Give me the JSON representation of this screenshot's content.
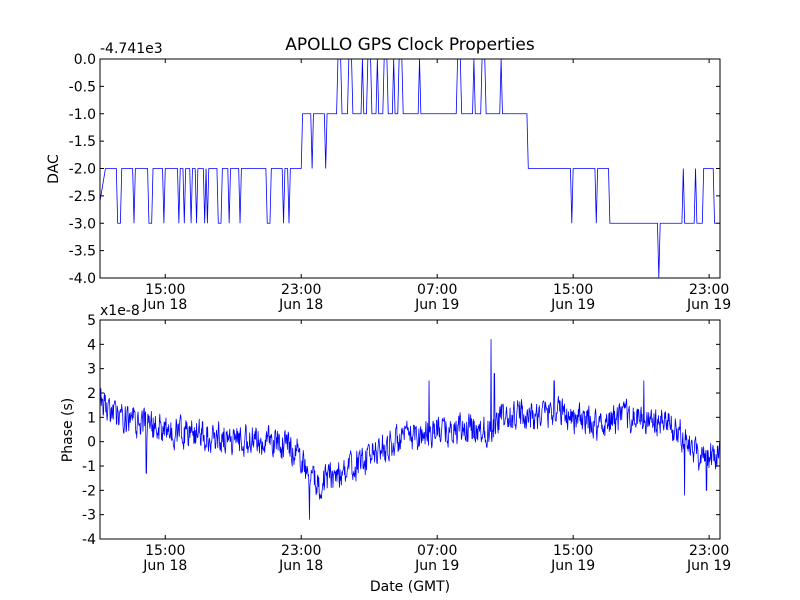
{
  "figure": {
    "title": "APOLLO GPS Clock Properties"
  },
  "chart_data": [
    {
      "type": "line",
      "name": "dac",
      "title": "APOLLO GPS Clock Properties",
      "xlabel": "",
      "ylabel": "DAC",
      "offset_text": "-4.741e3",
      "x_unit": "hours since Jun 18 00:00 GMT",
      "xlim": [
        10.6,
        33.4
      ],
      "ylim": [
        -4.0,
        0.0
      ],
      "yticks": [
        0.0,
        -0.5,
        -1.0,
        -1.5,
        -2.0,
        -2.5,
        -3.0,
        -3.5,
        -4.0
      ],
      "ytick_labels": [
        "0.0",
        "-0.5",
        "-1.0",
        "-1.5",
        "-2.0",
        "-2.5",
        "-3.0",
        "-3.5",
        "-4.0"
      ],
      "xticks": [
        {
          "x": 13,
          "time": "15:00",
          "date": "Jun 18"
        },
        {
          "x": 18,
          "time": "23:00",
          "date": "Jun 18"
        },
        {
          "x": 23,
          "time": "07:00",
          "date": "Jun 19"
        },
        {
          "x": 28,
          "time": "15:00",
          "date": "Jun 19"
        },
        {
          "x": 33,
          "time": "23:00",
          "date": "Jun 19"
        }
      ],
      "series": [
        {
          "name": "DAC",
          "color": "#0000ff",
          "points": [
            [
              10.6,
              -2.6
            ],
            [
              10.8,
              -2.0
            ],
            [
              11.2,
              -2.0
            ],
            [
              11.25,
              -3.0
            ],
            [
              11.35,
              -3.0
            ],
            [
              11.4,
              -2.0
            ],
            [
              11.8,
              -2.0
            ],
            [
              11.85,
              -3.0
            ],
            [
              11.9,
              -2.0
            ],
            [
              12.35,
              -2.0
            ],
            [
              12.4,
              -3.0
            ],
            [
              12.5,
              -3.0
            ],
            [
              12.55,
              -2.0
            ],
            [
              12.9,
              -2.0
            ],
            [
              12.95,
              -3.0
            ],
            [
              13.0,
              -2.0
            ],
            [
              13.45,
              -2.0
            ],
            [
              13.5,
              -3.0
            ],
            [
              13.55,
              -2.0
            ],
            [
              13.65,
              -2.0
            ],
            [
              13.7,
              -3.0
            ],
            [
              13.75,
              -2.0
            ],
            [
              13.9,
              -2.0
            ],
            [
              13.95,
              -3.0
            ],
            [
              14.0,
              -2.0
            ],
            [
              14.1,
              -2.0
            ],
            [
              14.15,
              -3.0
            ],
            [
              14.2,
              -2.0
            ],
            [
              14.4,
              -2.0
            ],
            [
              14.45,
              -3.0
            ],
            [
              14.5,
              -2.0
            ],
            [
              14.55,
              -3.0
            ],
            [
              14.6,
              -2.0
            ],
            [
              14.9,
              -2.0
            ],
            [
              14.95,
              -3.0
            ],
            [
              15.05,
              -3.0
            ],
            [
              15.1,
              -2.0
            ],
            [
              15.3,
              -2.0
            ],
            [
              15.35,
              -3.0
            ],
            [
              15.4,
              -2.0
            ],
            [
              15.7,
              -2.0
            ],
            [
              15.75,
              -3.0
            ],
            [
              15.8,
              -2.0
            ],
            [
              16.7,
              -2.0
            ],
            [
              16.75,
              -3.0
            ],
            [
              16.85,
              -3.0
            ],
            [
              16.9,
              -2.0
            ],
            [
              17.3,
              -2.0
            ],
            [
              17.35,
              -3.0
            ],
            [
              17.4,
              -2.0
            ],
            [
              17.5,
              -2.0
            ],
            [
              17.55,
              -3.0
            ],
            [
              17.6,
              -2.0
            ],
            [
              18.0,
              -2.0
            ],
            [
              18.05,
              -1.0
            ],
            [
              18.35,
              -1.0
            ],
            [
              18.4,
              -2.0
            ],
            [
              18.45,
              -1.0
            ],
            [
              18.85,
              -1.0
            ],
            [
              18.9,
              -2.0
            ],
            [
              18.95,
              -1.0
            ],
            [
              19.3,
              -1.0
            ],
            [
              19.35,
              0.0
            ],
            [
              19.45,
              0.0
            ],
            [
              19.5,
              -1.0
            ],
            [
              19.7,
              -1.0
            ],
            [
              19.75,
              0.0
            ],
            [
              19.85,
              0.0
            ],
            [
              19.9,
              -1.0
            ],
            [
              20.2,
              -1.0
            ],
            [
              20.25,
              0.0
            ],
            [
              20.3,
              -1.0
            ],
            [
              20.4,
              -1.0
            ],
            [
              20.45,
              0.0
            ],
            [
              20.55,
              0.0
            ],
            [
              20.6,
              -1.0
            ],
            [
              20.75,
              -1.0
            ],
            [
              20.8,
              0.0
            ],
            [
              20.85,
              -1.0
            ],
            [
              21.0,
              -1.0
            ],
            [
              21.05,
              0.0
            ],
            [
              21.15,
              0.0
            ],
            [
              21.2,
              -1.0
            ],
            [
              21.35,
              -1.0
            ],
            [
              21.4,
              0.0
            ],
            [
              21.45,
              -1.0
            ],
            [
              21.55,
              -1.0
            ],
            [
              21.6,
              0.0
            ],
            [
              21.7,
              0.0
            ],
            [
              21.75,
              -1.0
            ],
            [
              22.3,
              -1.0
            ],
            [
              22.35,
              0.0
            ],
            [
              22.4,
              -1.0
            ],
            [
              23.7,
              -1.0
            ],
            [
              23.75,
              0.0
            ],
            [
              23.85,
              0.0
            ],
            [
              23.9,
              -1.0
            ],
            [
              24.3,
              -1.0
            ],
            [
              24.35,
              0.0
            ],
            [
              24.4,
              -1.0
            ],
            [
              24.6,
              -1.0
            ],
            [
              24.65,
              0.0
            ],
            [
              24.75,
              0.0
            ],
            [
              24.8,
              -1.0
            ],
            [
              25.3,
              -1.0
            ],
            [
              25.35,
              0.0
            ],
            [
              25.4,
              -1.0
            ],
            [
              26.3,
              -1.0
            ],
            [
              26.35,
              -2.0
            ],
            [
              27.9,
              -2.0
            ],
            [
              27.95,
              -3.0
            ],
            [
              28.0,
              -2.0
            ],
            [
              28.8,
              -2.0
            ],
            [
              28.85,
              -3.0
            ],
            [
              28.9,
              -2.0
            ],
            [
              29.3,
              -2.0
            ],
            [
              29.35,
              -3.0
            ],
            [
              31.1,
              -3.0
            ],
            [
              31.15,
              -4.0
            ],
            [
              31.2,
              -3.0
            ],
            [
              32.0,
              -3.0
            ],
            [
              32.05,
              -2.0
            ],
            [
              32.1,
              -3.0
            ],
            [
              32.45,
              -3.0
            ],
            [
              32.5,
              -2.0
            ],
            [
              32.55,
              -3.0
            ],
            [
              32.75,
              -3.0
            ],
            [
              32.8,
              -2.0
            ],
            [
              33.15,
              -2.0
            ],
            [
              33.2,
              -3.0
            ],
            [
              33.4,
              -3.0
            ]
          ]
        }
      ]
    },
    {
      "type": "line",
      "name": "phase",
      "title": "",
      "xlabel": "Date (GMT)",
      "ylabel": "Phase (s)",
      "offset_text": "x1e-8",
      "x_unit": "hours since Jun 18 00:00 GMT",
      "xlim": [
        10.6,
        33.4
      ],
      "ylim": [
        -4,
        5
      ],
      "yticks": [
        5,
        4,
        3,
        2,
        1,
        0,
        -1,
        -2,
        -3,
        -4
      ],
      "ytick_labels": [
        "5",
        "4",
        "3",
        "2",
        "1",
        "0",
        "-1",
        "-2",
        "-3",
        "-4"
      ],
      "xticks": [
        {
          "x": 13,
          "time": "15:00",
          "date": "Jun 18"
        },
        {
          "x": 18,
          "time": "23:00",
          "date": "Jun 18"
        },
        {
          "x": 23,
          "time": "07:00",
          "date": "Jun 19"
        },
        {
          "x": 28,
          "time": "15:00",
          "date": "Jun 19"
        },
        {
          "x": 33,
          "time": "23:00",
          "date": "Jun 19"
        }
      ],
      "noise_amplitude": 0.55,
      "series": [
        {
          "name": "Phase",
          "color": "#0000ff",
          "trend": [
            [
              10.6,
              1.6
            ],
            [
              11.0,
              1.2
            ],
            [
              11.5,
              1.0
            ],
            [
              12.5,
              0.6
            ],
            [
              13.5,
              0.4
            ],
            [
              14.5,
              0.3
            ],
            [
              15.5,
              0.1
            ],
            [
              16.5,
              0.0
            ],
            [
              17.5,
              -0.1
            ],
            [
              18.0,
              -0.6
            ],
            [
              18.3,
              -1.6
            ],
            [
              18.6,
              -1.7
            ],
            [
              19.0,
              -1.5
            ],
            [
              19.6,
              -1.2
            ],
            [
              20.0,
              -1.0
            ],
            [
              20.5,
              -0.6
            ],
            [
              21.0,
              -0.3
            ],
            [
              21.5,
              0.0
            ],
            [
              22.0,
              0.2
            ],
            [
              22.5,
              0.3
            ],
            [
              23.0,
              0.5
            ],
            [
              23.5,
              0.4
            ],
            [
              24.0,
              0.5
            ],
            [
              24.5,
              0.5
            ],
            [
              25.0,
              0.5
            ],
            [
              25.3,
              1.0
            ],
            [
              25.7,
              0.9
            ],
            [
              26.0,
              1.2
            ],
            [
              26.5,
              1.0
            ],
            [
              27.0,
              1.2
            ],
            [
              27.5,
              1.3
            ],
            [
              28.0,
              1.0
            ],
            [
              28.5,
              0.8
            ],
            [
              29.0,
              0.7
            ],
            [
              29.5,
              0.9
            ],
            [
              30.0,
              1.0
            ],
            [
              30.5,
              0.9
            ],
            [
              31.0,
              0.7
            ],
            [
              31.5,
              0.8
            ],
            [
              32.0,
              0.2
            ],
            [
              32.3,
              -0.3
            ],
            [
              32.8,
              -0.6
            ],
            [
              33.4,
              -0.4
            ]
          ],
          "spikes": [
            [
              22.7,
              2.5
            ],
            [
              24.98,
              4.2
            ],
            [
              25.1,
              2.8
            ],
            [
              27.3,
              2.5
            ],
            [
              30.6,
              2.5
            ],
            [
              18.3,
              -3.2
            ],
            [
              12.3,
              -1.3
            ],
            [
              32.1,
              -2.2
            ],
            [
              32.9,
              -2.0
            ]
          ]
        }
      ]
    }
  ]
}
